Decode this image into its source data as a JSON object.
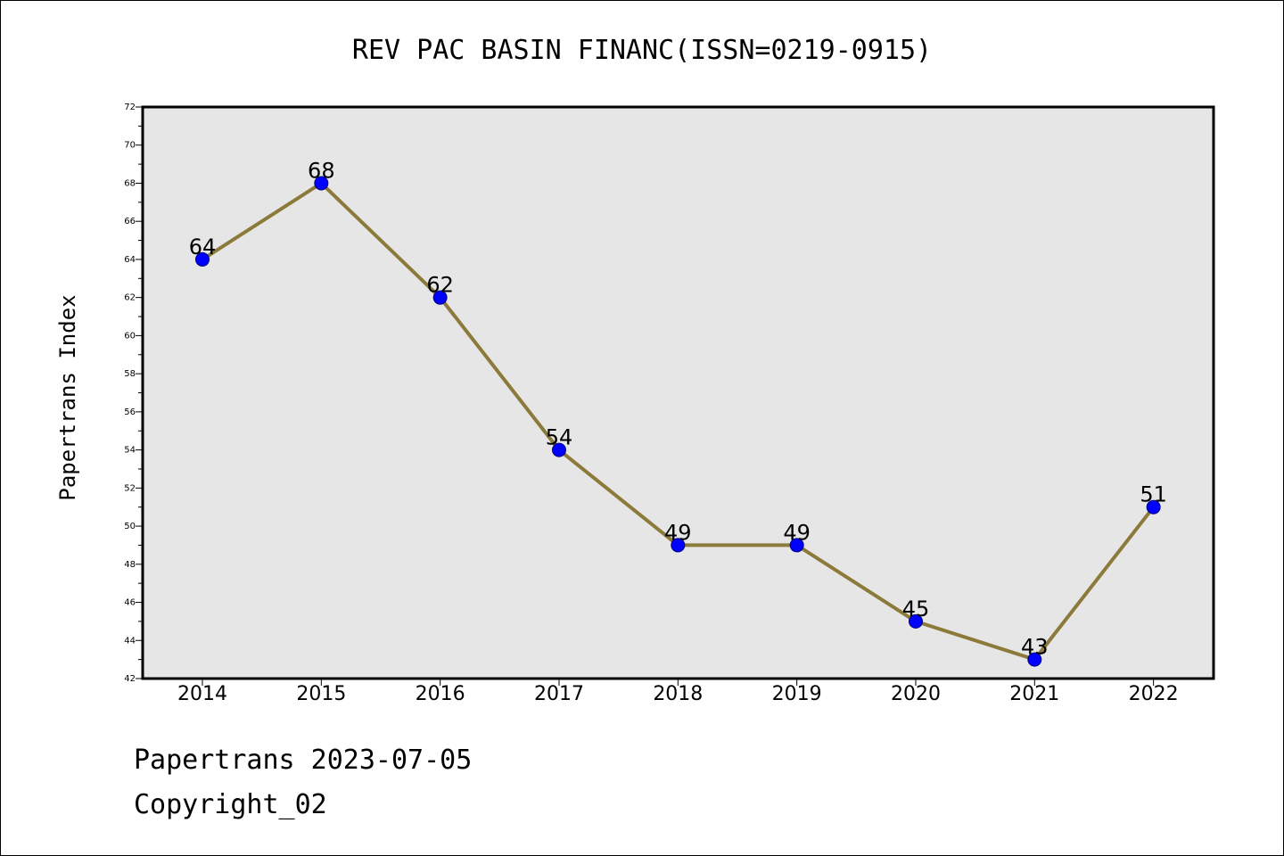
{
  "chart_data": {
    "type": "line",
    "title": "REV PAC BASIN FINANC(ISSN=0219-0915)",
    "xlabel": "",
    "ylabel": "Papertrans Index",
    "categories": [
      "2014",
      "2015",
      "2016",
      "2017",
      "2018",
      "2019",
      "2020",
      "2021",
      "2022"
    ],
    "values": [
      64,
      68,
      62,
      54,
      49,
      49,
      45,
      43,
      51
    ],
    "data_labels": [
      "64",
      "68",
      "62",
      "54",
      "49",
      "49",
      "45",
      "43",
      "51"
    ],
    "ylim": [
      42,
      72
    ],
    "yticks": [
      "42",
      "44",
      "46",
      "48",
      "50",
      "52",
      "54",
      "56",
      "58",
      "60",
      "62",
      "64",
      "66",
      "68",
      "70",
      "72"
    ],
    "grid": false,
    "colors": {
      "line": "#8c7a3a",
      "marker": "#0000ff",
      "marker_edge": "#000080",
      "plot_background": "#e6e6e6"
    }
  },
  "footer": {
    "line1": "Papertrans 2023-07-05",
    "line2": "Copyright_02"
  }
}
